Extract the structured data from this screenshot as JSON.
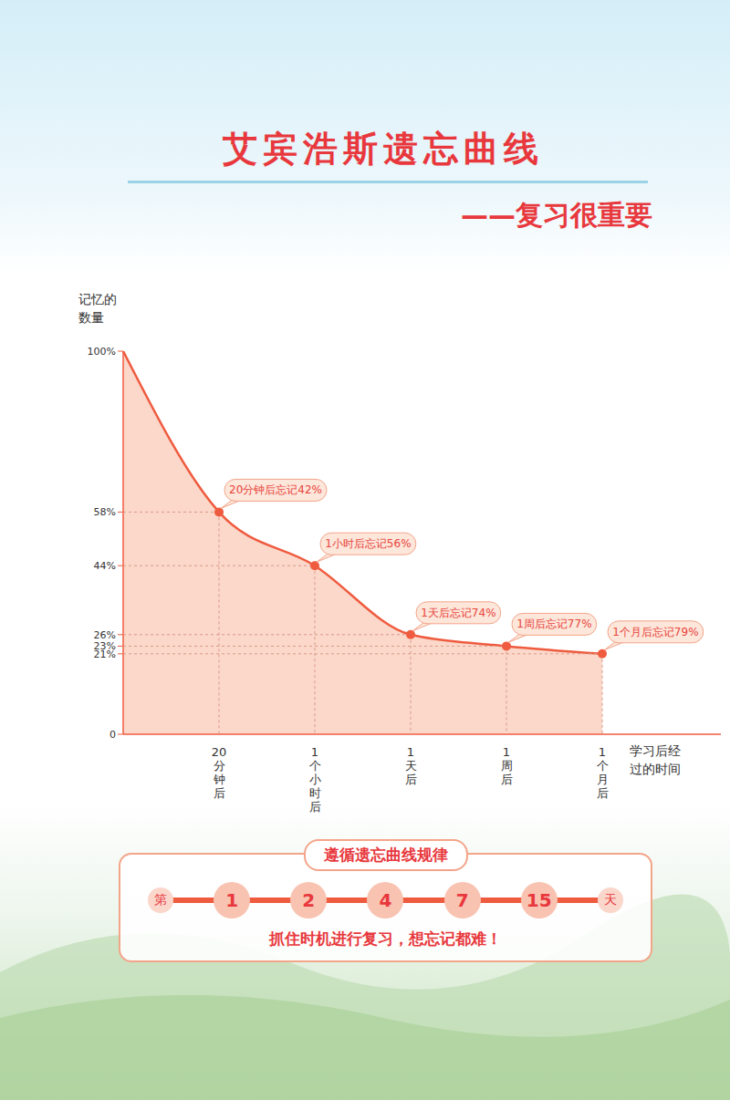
{
  "chart_data": {
    "type": "area",
    "title": "艾宾浩斯遗忘曲线",
    "subtitle": "——复习很重要",
    "x_label": "学习后经过的时间",
    "y_label": "记忆的数量",
    "categories": [
      null,
      "20分钟后",
      "1个小时后",
      "1天后",
      "1周后",
      "1个月后"
    ],
    "values": [
      100,
      58,
      44,
      26,
      23,
      21
    ],
    "annotations": [
      null,
      "20分钟后忘记42%",
      "1小时后忘记56%",
      "1天后忘记74%",
      "1周后忘记77%",
      "1个月后忘记79%"
    ],
    "ylim": [
      0,
      100
    ],
    "yticks": [
      0,
      {
        "value": 21,
        "label": "21%"
      },
      {
        "value": 23,
        "label": "23%"
      },
      {
        "value": 26,
        "label": "26%"
      },
      {
        "value": 44,
        "label": "44%"
      },
      {
        "value": 58,
        "label": "58%"
      },
      {
        "value": 100,
        "label": "100%"
      }
    ],
    "color": "#ef5b3f",
    "marker": "circle",
    "grid": false
  },
  "review_schedule": {
    "title": "遵循遗忘曲线规律",
    "prefix": "第",
    "days": [
      1,
      2,
      4,
      7,
      15
    ],
    "suffix": "天",
    "caption": "抓住时机进行复习，想忘记都难！"
  }
}
